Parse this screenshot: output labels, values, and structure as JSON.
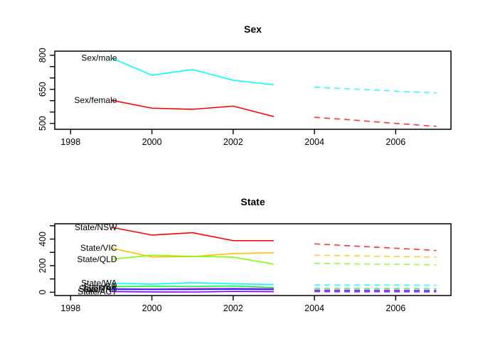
{
  "figure": {
    "background": "#FFFFFF",
    "description": "Two stacked R time-series plots with history lines and dashed forecasts"
  },
  "chart_data": [
    {
      "type": "line",
      "title": "Sex",
      "xlabel": "",
      "ylabel": "",
      "grid": false,
      "legend_position": "labels-at-line-start",
      "xlim": [
        1997.61,
        2007.36
      ],
      "ylim": [
        474,
        818
      ],
      "xticks": [
        1998,
        2000,
        2002,
        2004,
        2006
      ],
      "yticks": [
        500,
        550,
        600,
        650,
        700,
        750,
        800
      ],
      "ytick_labels_shown": [
        500,
        650,
        800
      ],
      "history_years": [
        1999,
        2000,
        2001,
        2002,
        2003
      ],
      "forecast_years": [
        2004,
        2005,
        2006,
        2007
      ],
      "forecast_style": "dashed",
      "series": [
        {
          "name": "Sex/male",
          "color": "#00FFFF",
          "history": [
            788,
            712,
            737,
            690,
            670
          ],
          "forecast": [
            659,
            651,
            642,
            634
          ]
        },
        {
          "name": "Sex/female",
          "color": "#FF0000",
          "history": [
            602,
            567,
            562,
            576,
            530
          ],
          "forecast": [
            527,
            514,
            500,
            487
          ]
        }
      ]
    },
    {
      "type": "line",
      "title": "State",
      "xlabel": "",
      "ylabel": "",
      "grid": false,
      "legend_position": "labels-at-line-start",
      "xlim": [
        1997.61,
        2007.36
      ],
      "ylim": [
        -25,
        515
      ],
      "xticks": [
        1998,
        2000,
        2002,
        2004,
        2006
      ],
      "yticks": [
        0,
        100,
        200,
        300,
        400,
        500
      ],
      "ytick_labels_shown": [
        0,
        200,
        400
      ],
      "history_years": [
        1999,
        2000,
        2001,
        2002,
        2003
      ],
      "forecast_years": [
        2004,
        2005,
        2006,
        2007
      ],
      "forecast_style": "dashed",
      "series": [
        {
          "name": "State/NSW",
          "color": "#FF0000",
          "history": [
            489,
            430,
            448,
            388,
            388
          ],
          "forecast": [
            364,
            347,
            331,
            314
          ]
        },
        {
          "name": "State/VIC",
          "color": "#FFBF00",
          "history": [
            333,
            265,
            268,
            291,
            297
          ],
          "forecast": [
            278,
            274,
            269,
            265
          ]
        },
        {
          "name": "State/QLD",
          "color": "#80FF00",
          "history": [
            248,
            278,
            270,
            264,
            211
          ],
          "forecast": [
            217,
            213,
            210,
            206
          ]
        },
        {
          "name": "State/WA",
          "color": "#00FFFF",
          "history": [
            68,
            60,
            72,
            63,
            58
          ],
          "forecast": [
            55,
            54,
            54,
            53
          ]
        },
        {
          "name": "State/SA",
          "color": "#00FF40",
          "history": [
            42,
            45,
            43,
            47,
            35
          ],
          "forecast": [
            29,
            28,
            28,
            27
          ]
        },
        {
          "name": "State/TAS",
          "color": "#FF00BF",
          "history": [
            26,
            24,
            27,
            28,
            26
          ],
          "forecast": [
            17,
            16,
            16,
            15
          ]
        },
        {
          "name": "State/NT",
          "color": "#0040FF",
          "history": [
            21,
            20,
            20,
            22,
            20
          ],
          "forecast": [
            11,
            11,
            10,
            10
          ]
        },
        {
          "name": "State/ACT",
          "color": "#8000FF",
          "history": [
            5,
            2,
            1,
            6,
            4
          ],
          "forecast": [
            4,
            3,
            3,
            2
          ]
        }
      ]
    }
  ]
}
